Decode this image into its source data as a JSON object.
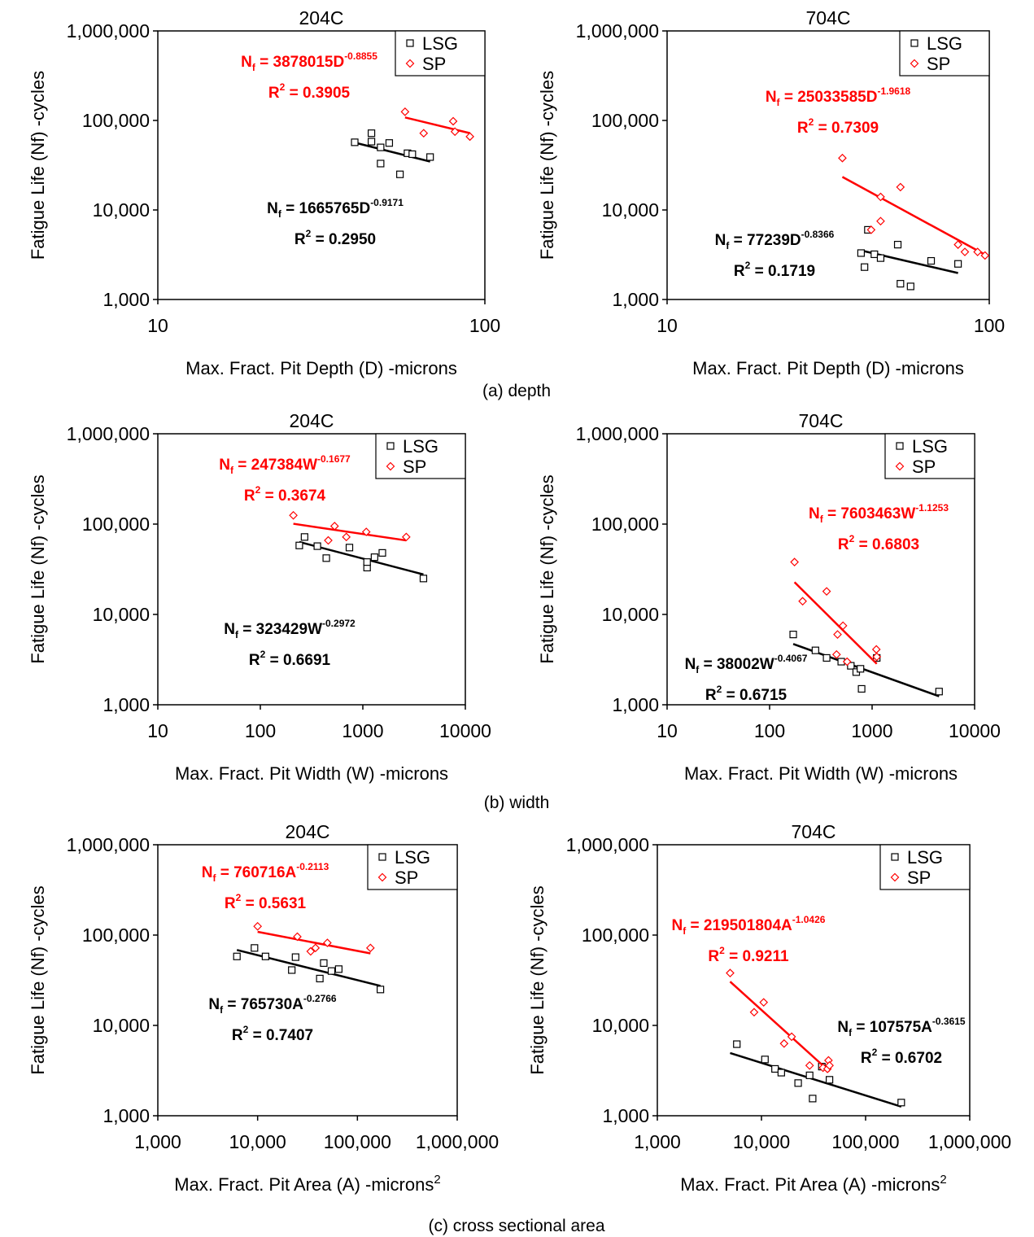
{
  "colors": {
    "lsg": "#000000",
    "sp": "#ff0000"
  },
  "captions": [
    "(a) depth",
    "(b) width",
    "(c) cross sectional area"
  ],
  "chart_data": [
    {
      "type": "scatter",
      "panel": "a-left",
      "title": "204C",
      "xlabel": "Max. Fract. Pit Depth (D) -microns",
      "xlabel_sup": "",
      "ylabel": "Fatigue Life (Nf) -cycles",
      "x_scale": "log",
      "y_scale": "log",
      "xlim": [
        10,
        100
      ],
      "ylim": [
        1000,
        1000000
      ],
      "xticks": [
        "10",
        "100"
      ],
      "yticks": [
        "1,000",
        "10,000",
        "100,000",
        "1,000,000"
      ],
      "legend": {
        "placement": "top-right",
        "entries": [
          "LSG",
          "SP"
        ]
      },
      "series": [
        {
          "name": "LSG",
          "color": "#000000",
          "points": [
            [
              40,
              57000
            ],
            [
              45,
              72000
            ],
            [
              45,
              58000
            ],
            [
              48,
              50000
            ],
            [
              48,
              33000
            ],
            [
              51,
              56000
            ],
            [
              55,
              25000
            ],
            [
              58,
              43000
            ],
            [
              60,
              42000
            ],
            [
              68,
              39000
            ]
          ],
          "fit": {
            "coef": 1665765,
            "exp": -0.9171,
            "x_range": [
              40,
              68
            ],
            "eq_prefix": "N",
            "eq_sub": "f",
            "eq_body": " = 1665765D",
            "eq_sup": "-0.9171",
            "r2_prefix": "R",
            "r2_sup": "2",
            "r2_body": " = 0.2950"
          }
        },
        {
          "name": "SP",
          "color": "#ff0000",
          "points": [
            [
              57,
              125000
            ],
            [
              65,
              72000
            ],
            [
              80,
              98000
            ],
            [
              81,
              75000
            ],
            [
              90,
              66000
            ]
          ],
          "fit": {
            "coef": 3878015,
            "exp": -0.8855,
            "x_range": [
              57,
              90
            ],
            "eq_prefix": "N",
            "eq_sub": "f",
            "eq_body": " = 3878015D",
            "eq_sup": "-0.8855",
            "r2_prefix": "R",
            "r2_sup": "2",
            "r2_body": " = 0.3905"
          }
        }
      ]
    },
    {
      "type": "scatter",
      "panel": "a-right",
      "title": "704C",
      "xlabel": "Max. Fract. Pit Depth (D) -microns",
      "xlabel_sup": "",
      "ylabel": "Fatigue Life (Nf) -cycles",
      "x_scale": "log",
      "y_scale": "log",
      "xlim": [
        10,
        100
      ],
      "ylim": [
        1000,
        1000000
      ],
      "xticks": [
        "10",
        "100"
      ],
      "yticks": [
        "1,000",
        "10,000",
        "100,000",
        "1,000,000"
      ],
      "legend": {
        "placement": "top-right",
        "entries": [
          "LSG",
          "SP"
        ]
      },
      "series": [
        {
          "name": "LSG",
          "color": "#000000",
          "points": [
            [
              40,
              3300
            ],
            [
              41,
              2300
            ],
            [
              42,
              6000
            ],
            [
              44,
              3200
            ],
            [
              46,
              2900
            ],
            [
              52,
              4100
            ],
            [
              53,
              1500
            ],
            [
              57,
              1400
            ],
            [
              66,
              2700
            ],
            [
              80,
              2500
            ]
          ],
          "fit": {
            "coef": 77239,
            "exp": -0.8366,
            "x_range": [
              40,
              80
            ],
            "eq_prefix": "N",
            "eq_sub": "f",
            "eq_body": " = 77239D",
            "eq_sup": "-0.8366",
            "r2_prefix": "R",
            "r2_sup": "2",
            "r2_body": " = 0.1719"
          }
        },
        {
          "name": "SP",
          "color": "#ff0000",
          "points": [
            [
              35,
              38000
            ],
            [
              43,
              6000
            ],
            [
              46,
              14000
            ],
            [
              46,
              7500
            ],
            [
              53,
              18000
            ],
            [
              80,
              4100
            ],
            [
              84,
              3400
            ],
            [
              92,
              3400
            ],
            [
              97,
              3100
            ]
          ],
          "fit": {
            "coef": 25033585,
            "exp": -1.9618,
            "x_range": [
              35,
              97
            ],
            "eq_prefix": "N",
            "eq_sub": "f",
            "eq_body": " = 25033585D",
            "eq_sup": "-1.9618",
            "r2_prefix": "R",
            "r2_sup": "2",
            "r2_body": " = 0.7309"
          }
        }
      ]
    },
    {
      "type": "scatter",
      "panel": "b-left",
      "title": "204C",
      "xlabel": "Max. Fract. Pit Width (W) -microns",
      "xlabel_sup": "",
      "ylabel": "Fatigue Life (Nf) -cycles",
      "x_scale": "log",
      "y_scale": "log",
      "xlim": [
        10,
        10000
      ],
      "ylim": [
        1000,
        1000000
      ],
      "xticks": [
        "10",
        "100",
        "1000",
        "10000"
      ],
      "yticks": [
        "1,000",
        "10,000",
        "100,000",
        "1,000,000"
      ],
      "legend": {
        "placement": "top-right",
        "entries": [
          "LSG",
          "SP"
        ]
      },
      "series": [
        {
          "name": "LSG",
          "color": "#000000",
          "points": [
            [
              240,
              58000
            ],
            [
              270,
              72000
            ],
            [
              360,
              57000
            ],
            [
              440,
              42000
            ],
            [
              740,
              55000
            ],
            [
              1100,
              33000
            ],
            [
              1100,
              38000
            ],
            [
              1300,
              43000
            ],
            [
              1550,
              48000
            ],
            [
              3900,
              25000
            ]
          ],
          "fit": {
            "coef": 323429,
            "exp": -0.2972,
            "x_range": [
              240,
              3900
            ],
            "eq_prefix": "N",
            "eq_sub": "f",
            "eq_body": " = 323429W",
            "eq_sup": "-0.2972",
            "r2_prefix": "R",
            "r2_sup": "2",
            "r2_body": " = 0.6691"
          }
        },
        {
          "name": "SP",
          "color": "#ff0000",
          "points": [
            [
              210,
              125000
            ],
            [
              460,
              66000
            ],
            [
              530,
              95000
            ],
            [
              690,
              72000
            ],
            [
              1080,
              82000
            ],
            [
              2650,
              72000
            ]
          ],
          "fit": {
            "coef": 247384,
            "exp": -0.1677,
            "x_range": [
              210,
              2650
            ],
            "eq_prefix": "N",
            "eq_sub": "f",
            "eq_body": " = 247384W",
            "eq_sup": "-0.1677",
            "r2_prefix": "R",
            "r2_sup": "2",
            "r2_body": " = 0.3674"
          }
        }
      ]
    },
    {
      "type": "scatter",
      "panel": "b-right",
      "title": "704C",
      "xlabel": "Max. Fract. Pit Width (W) -microns",
      "xlabel_sup": "",
      "ylabel": "Fatigue Life (Nf) -cycles",
      "x_scale": "log",
      "y_scale": "log",
      "xlim": [
        10,
        10000
      ],
      "ylim": [
        1000,
        1000000
      ],
      "xticks": [
        "10",
        "100",
        "1000",
        "10000"
      ],
      "yticks": [
        "1,000",
        "10,000",
        "100,000",
        "1,000,000"
      ],
      "legend": {
        "placement": "top-right",
        "entries": [
          "LSG",
          "SP"
        ]
      },
      "series": [
        {
          "name": "LSG",
          "color": "#000000",
          "points": [
            [
              170,
              6000
            ],
            [
              280,
              4000
            ],
            [
              360,
              3300
            ],
            [
              500,
              3000
            ],
            [
              620,
              2700
            ],
            [
              700,
              2300
            ],
            [
              770,
              2500
            ],
            [
              790,
              1500
            ],
            [
              1110,
              3300
            ],
            [
              4500,
              1400
            ]
          ],
          "fit": {
            "coef": 38002,
            "exp": -0.4067,
            "x_range": [
              170,
              4500
            ],
            "eq_prefix": "N",
            "eq_sub": "f",
            "eq_body": " = 38002W",
            "eq_sup": "-0.4067",
            "r2_prefix": "R",
            "r2_sup": "2",
            "r2_body": " = 0.6715"
          }
        },
        {
          "name": "SP",
          "color": "#ff0000",
          "points": [
            [
              175,
              38000
            ],
            [
              210,
              14000
            ],
            [
              360,
              18000
            ],
            [
              450,
              3600
            ],
            [
              460,
              6000
            ],
            [
              520,
              7500
            ],
            [
              570,
              3000
            ],
            [
              1100,
              4100
            ],
            [
              1110,
              3400
            ]
          ],
          "fit": {
            "coef": 7603463,
            "exp": -1.1253,
            "x_range": [
              175,
              1110
            ],
            "eq_prefix": "N",
            "eq_sub": "f",
            "eq_body": " = 7603463W",
            "eq_sup": "-1.1253",
            "r2_prefix": "R",
            "r2_sup": "2",
            "r2_body": " = 0.6803"
          }
        }
      ]
    },
    {
      "type": "scatter",
      "panel": "c-left",
      "title": "204C",
      "xlabel": "Max. Fract. Pit Area (A) -microns",
      "xlabel_sup": "2",
      "ylabel": "Fatigue Life (Nf) -cycles",
      "x_scale": "log",
      "y_scale": "log",
      "xlim": [
        1000,
        1000000
      ],
      "ylim": [
        1000,
        1000000
      ],
      "xticks": [
        "1,000",
        "10,000",
        "100,000",
        "1,000,000"
      ],
      "yticks": [
        "1,000",
        "10,000",
        "100,000",
        "1,000,000"
      ],
      "legend": {
        "placement": "top-right",
        "entries": [
          "LSG",
          "SP"
        ]
      },
      "series": [
        {
          "name": "LSG",
          "color": "#000000",
          "points": [
            [
              6200,
              58000
            ],
            [
              9300,
              72000
            ],
            [
              12000,
              58000
            ],
            [
              22000,
              41000
            ],
            [
              24000,
              57000
            ],
            [
              42000,
              33000
            ],
            [
              46000,
              49000
            ],
            [
              55000,
              40000
            ],
            [
              65000,
              42000
            ],
            [
              170000,
              25000
            ]
          ],
          "fit": {
            "coef": 765730,
            "exp": -0.2766,
            "x_range": [
              6200,
              170000
            ],
            "eq_prefix": "N",
            "eq_sub": "f",
            "eq_body": " = 765730A",
            "eq_sup": "-0.2766",
            "r2_prefix": "R",
            "r2_sup": "2",
            "r2_body": " = 0.7407"
          }
        },
        {
          "name": "SP",
          "color": "#ff0000",
          "points": [
            [
              10000,
              125000
            ],
            [
              25000,
              96000
            ],
            [
              34000,
              66000
            ],
            [
              38000,
              72000
            ],
            [
              50000,
              82000
            ],
            [
              135000,
              72000
            ]
          ],
          "fit": {
            "coef": 760716,
            "exp": -0.2113,
            "x_range": [
              10000,
              135000
            ],
            "eq_prefix": "N",
            "eq_sub": "f",
            "eq_body": " = 760716A",
            "eq_sup": "-0.2113",
            "r2_prefix": "R",
            "r2_sup": "2",
            "r2_body": " = 0.5631"
          }
        }
      ]
    },
    {
      "type": "scatter",
      "panel": "c-right",
      "title": "704C",
      "xlabel": "Max. Fract. Pit Area (A) -microns",
      "xlabel_sup": "2",
      "ylabel": "Fatigue Life (Nf) -cycles",
      "x_scale": "log",
      "y_scale": "log",
      "xlim": [
        1000,
        1000000
      ],
      "ylim": [
        1000,
        1000000
      ],
      "xticks": [
        "1,000",
        "10,000",
        "100,000",
        "1,000,000"
      ],
      "yticks": [
        "1,000",
        "10,000",
        "100,000",
        "1,000,000"
      ],
      "legend": {
        "placement": "top-right",
        "entries": [
          "LSG",
          "SP"
        ]
      },
      "series": [
        {
          "name": "LSG",
          "color": "#000000",
          "points": [
            [
              5800,
              6200
            ],
            [
              10800,
              4200
            ],
            [
              13500,
              3300
            ],
            [
              15500,
              3000
            ],
            [
              22500,
              2300
            ],
            [
              29000,
              2800
            ],
            [
              31000,
              1550
            ],
            [
              38000,
              3500
            ],
            [
              45000,
              2500
            ],
            [
              220000,
              1400
            ]
          ],
          "fit": {
            "coef": 107575,
            "exp": -0.3615,
            "x_range": [
              5000,
              220000
            ],
            "eq_prefix": "N",
            "eq_sub": "f",
            "eq_body": " = 107575A",
            "eq_sup": "-0.3615",
            "r2_prefix": "R",
            "r2_sup": "2",
            "r2_body": " = 0.6702"
          }
        },
        {
          "name": "SP",
          "color": "#ff0000",
          "points": [
            [
              5000,
              38000
            ],
            [
              8500,
              14000
            ],
            [
              10500,
              18000
            ],
            [
              16500,
              6300
            ],
            [
              19500,
              7500
            ],
            [
              29000,
              3600
            ],
            [
              39000,
              3400
            ],
            [
              43000,
              3300
            ],
            [
              44000,
              4100
            ],
            [
              45000,
              3600
            ]
          ],
          "fit": {
            "coef": 219501804,
            "exp": -1.0426,
            "x_range": [
              5000,
              45000
            ],
            "eq_prefix": "N",
            "eq_sub": "f",
            "eq_body": " = 219501804A",
            "eq_sup": "-1.0426",
            "r2_prefix": "R",
            "r2_sup": "2",
            "r2_body": " = 0.9211"
          }
        }
      ]
    }
  ]
}
